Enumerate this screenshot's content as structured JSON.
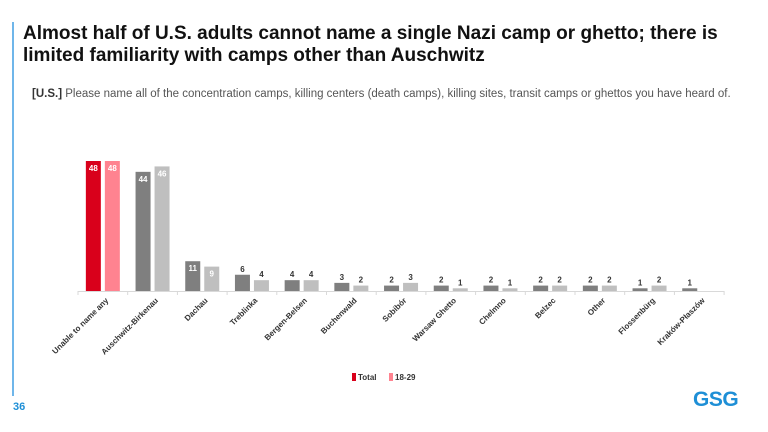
{
  "page": {
    "page_number": "36",
    "logo": "GSG",
    "accent": "#1e8fd6"
  },
  "chart_data": {
    "type": "bar",
    "title": "Almost half of U.S. adults cannot name a single Nazi camp or ghetto; there is limited familiarity with camps other than Auschwitz",
    "subtitle_prefix": "[U.S.]",
    "subtitle": "Please name all of the concentration camps, killing centers (death camps), killing sites, transit camps or ghettos you have heard of.",
    "categories": [
      "Unable to name any",
      "Auschwitz-Birkenau",
      "Dachau",
      "Treblinka",
      "Bergen-Belsen",
      "Buchenwald",
      "Sobibór",
      "Warsaw Ghetto",
      "Chelmno",
      "Belzec",
      "Other",
      "Flossenbürg",
      "Kraków-Płaszów"
    ],
    "series": [
      {
        "name": "Total",
        "values": [
          48,
          44,
          11,
          6,
          4,
          3,
          2,
          2,
          2,
          2,
          2,
          1,
          1
        ],
        "color": "#7f7f7f",
        "highlight_color": "#d9001b"
      },
      {
        "name": "18-29",
        "values": [
          48,
          46,
          9,
          4,
          4,
          2,
          3,
          1,
          1,
          2,
          2,
          2,
          null
        ],
        "color": "#bfbfbf",
        "highlight_color": "#ff8390"
      }
    ],
    "ylim": [
      0,
      48
    ],
    "grid": false,
    "legend": "bottom-center",
    "legend_colors": [
      "#d9001b",
      "#ff8390"
    ]
  }
}
